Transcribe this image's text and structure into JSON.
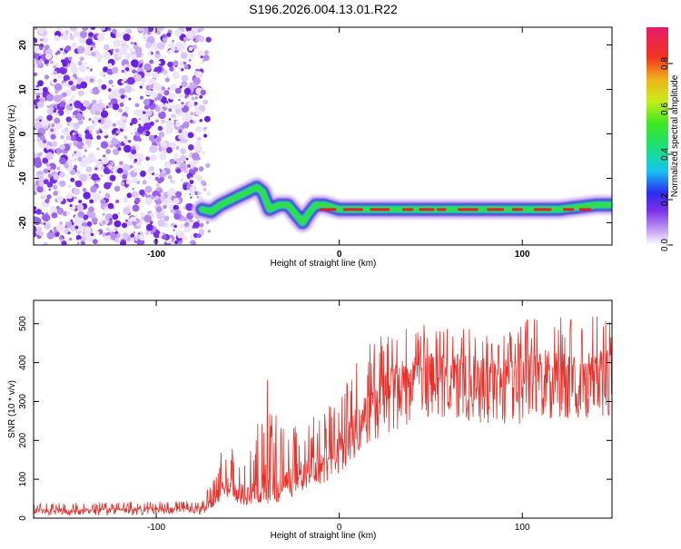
{
  "colors": {
    "background": "#ffffff",
    "snr_line": "#e8302a",
    "axis": "#000000",
    "noise_speckle": "#8a3cf0",
    "ridge_outer": "#4a1fd8",
    "ridge_mid": "#1ad9c8",
    "ridge_inner": "#33e033",
    "ridge_peak": "#e81a2a"
  },
  "title": "S196.2026.004.13.01.R22",
  "chart_data": [
    {
      "type": "heatmap",
      "title": "S196.2026.004.13.01.R22",
      "xlabel": "Height of straight line (km)",
      "ylabel": "Frequency (Hz)",
      "xlim": [
        -167,
        149
      ],
      "ylim": [
        -25,
        24
      ],
      "xticks": [
        -100,
        0,
        100
      ],
      "xtick_labels": [
        "-100",
        "0",
        "100"
      ],
      "yticks": [
        -20,
        -10,
        0,
        10,
        20
      ],
      "ytick_labels": [
        "-20",
        "-10",
        "0",
        "10",
        "20"
      ],
      "colorbar": {
        "label": "Normalized spectral amplitude",
        "range": [
          0,
          0.96
        ],
        "ticks": [
          0,
          0.2,
          0.4,
          0.6,
          0.8
        ],
        "tick_labels": [
          "0.0",
          "0.2",
          "0.4",
          "0.6",
          "0.8"
        ]
      },
      "noise_region": {
        "x_range": [
          -167,
          -75
        ],
        "y_range": [
          -25,
          24
        ],
        "amplitude": 0.1
      },
      "ridge": {
        "x": [
          -75,
          -70,
          -65,
          -60,
          -55,
          -50,
          -45,
          -42,
          -38,
          -33,
          -28,
          -24,
          -20,
          -17,
          -13,
          -8,
          0,
          20,
          40,
          60,
          80,
          100,
          120,
          140,
          149
        ],
        "freq": [
          -17,
          -17.5,
          -16,
          -15,
          -14,
          -13,
          -12,
          -13,
          -17,
          -16,
          -16,
          -18,
          -20,
          -18,
          -16,
          -16,
          -17,
          -17,
          -17,
          -17,
          -17,
          -17,
          -17,
          -16,
          -16
        ]
      }
    },
    {
      "type": "line",
      "xlabel": "Height of straight line (km)",
      "ylabel": "SNR (10 * v/v)",
      "xlim": [
        -167,
        149
      ],
      "ylim": [
        0,
        560
      ],
      "xticks": [
        -100,
        0,
        100
      ],
      "xtick_labels": [
        "-100",
        "0",
        "100"
      ],
      "yticks": [
        0,
        100,
        200,
        300,
        400,
        500
      ],
      "ytick_labels": [
        "0",
        "100",
        "200",
        "300",
        "400",
        "500"
      ],
      "series": [
        {
          "name": "SNR",
          "x": [
            -167,
            -140,
            -110,
            -85,
            -75,
            -70,
            -65,
            -60,
            -55,
            -50,
            -45,
            -40,
            -35,
            -30,
            -25,
            -20,
            -15,
            -10,
            -5,
            0,
            5,
            10,
            15,
            20,
            25,
            30,
            40,
            50,
            60,
            70,
            80,
            90,
            100,
            110,
            120,
            130,
            140,
            149
          ],
          "baseline": [
            20,
            20,
            22,
            24,
            25,
            40,
            70,
            80,
            60,
            60,
            65,
            60,
            65,
            85,
            95,
            110,
            130,
            140,
            155,
            185,
            210,
            240,
            270,
            300,
            330,
            350,
            380,
            390,
            390,
            395,
            380,
            380,
            385,
            390,
            385,
            390,
            395,
            395
          ],
          "peaks": [
            38,
            40,
            42,
            45,
            48,
            90,
            170,
            190,
            160,
            170,
            230,
            380,
            280,
            250,
            260,
            240,
            260,
            290,
            300,
            320,
            380,
            410,
            440,
            470,
            500,
            520,
            520,
            510,
            500,
            490,
            480,
            470,
            500,
            540,
            530,
            520,
            520,
            520
          ]
        }
      ]
    }
  ]
}
